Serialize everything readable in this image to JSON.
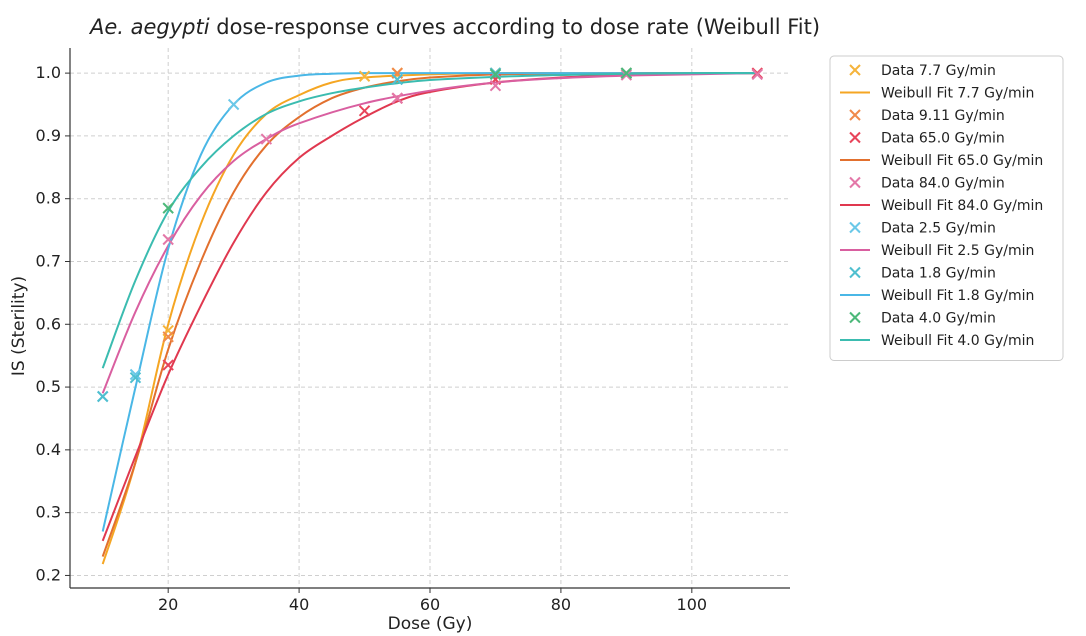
{
  "chart_data": {
    "type": "line",
    "title_species": "Ae. aegypti",
    "title_rest": " dose-response curves according to dose rate (Weibull Fit)",
    "xlabel": "Dose (Gy)",
    "ylabel": "IS (Sterility)",
    "xlim": [
      5,
      115
    ],
    "ylim": [
      0.18,
      1.04
    ],
    "xticks": [
      20,
      40,
      60,
      80,
      100
    ],
    "yticks": [
      0.2,
      0.3,
      0.4,
      0.5,
      0.6,
      0.7,
      0.8,
      0.9,
      1.0
    ],
    "ytick_labels": [
      "0.2",
      "0.3",
      "0.4",
      "0.5",
      "0.6",
      "0.7",
      "0.8",
      "0.9",
      "1.0"
    ],
    "grid": true,
    "legend_position": "outside-right",
    "scatter_series": [
      {
        "name": "Data 7.7 Gy/min",
        "color": "#f5b43c",
        "points": [
          [
            20,
            0.59
          ],
          [
            50,
            0.995
          ],
          [
            55,
            1.0
          ],
          [
            70,
            1.0
          ],
          [
            90,
            1.0
          ]
        ]
      },
      {
        "name": "Data 9.11 Gy/min",
        "color": "#f08a4b",
        "points": [
          [
            20,
            0.58
          ],
          [
            55,
            1.0
          ],
          [
            70,
            1.0
          ],
          [
            90,
            1.0
          ]
        ]
      },
      {
        "name": "Data 65.0 Gy/min",
        "color": "#e8445a",
        "points": [
          [
            20,
            0.535
          ],
          [
            50,
            0.94
          ],
          [
            55,
            0.96
          ],
          [
            70,
            0.99
          ],
          [
            110,
            1.0
          ]
        ]
      },
      {
        "name": "Data 84.0 Gy/min",
        "color": "#e377a8",
        "points": [
          [
            20,
            0.735
          ],
          [
            35,
            0.895
          ],
          [
            55,
            0.96
          ],
          [
            70,
            0.98
          ],
          [
            90,
            0.997
          ],
          [
            110,
            0.998
          ]
        ]
      },
      {
        "name": "Data 2.5 Gy/min",
        "color": "#6ac8e8",
        "points": [
          [
            10,
            0.485
          ],
          [
            15,
            0.52
          ],
          [
            30,
            0.95
          ],
          [
            55,
            0.99
          ],
          [
            70,
            1.0
          ]
        ]
      },
      {
        "name": "Data 1.8 Gy/min",
        "color": "#4fbfcf",
        "points": [
          [
            10,
            0.485
          ],
          [
            15,
            0.515
          ],
          [
            55,
            0.99
          ],
          [
            70,
            1.0
          ],
          [
            90,
            1.0
          ]
        ]
      },
      {
        "name": "Data 4.0 Gy/min",
        "color": "#4cb87a",
        "points": [
          [
            20,
            0.785
          ],
          [
            70,
            0.998
          ],
          [
            90,
            1.0
          ]
        ]
      }
    ],
    "fit_series": [
      {
        "name": "Weibull Fit 7.7 Gy/min",
        "color": "#f5a623",
        "points": [
          [
            10,
            0.218
          ],
          [
            15,
            0.38
          ],
          [
            20,
            0.6
          ],
          [
            25,
            0.76
          ],
          [
            30,
            0.87
          ],
          [
            35,
            0.935
          ],
          [
            40,
            0.965
          ],
          [
            45,
            0.985
          ],
          [
            50,
            0.993
          ],
          [
            60,
            0.998
          ],
          [
            70,
            1.0
          ],
          [
            80,
            1.0
          ],
          [
            90,
            1.0
          ],
          [
            100,
            1.0
          ],
          [
            110,
            1.0
          ]
        ]
      },
      {
        "name": "Weibull Fit 65.0 Gy/min",
        "color": "#e2702e",
        "points": [
          [
            10,
            0.23
          ],
          [
            15,
            0.38
          ],
          [
            20,
            0.56
          ],
          [
            25,
            0.7
          ],
          [
            30,
            0.81
          ],
          [
            35,
            0.885
          ],
          [
            40,
            0.93
          ],
          [
            45,
            0.96
          ],
          [
            50,
            0.977
          ],
          [
            55,
            0.987
          ],
          [
            60,
            0.993
          ],
          [
            70,
            0.998
          ],
          [
            80,
            0.999
          ],
          [
            90,
            1.0
          ],
          [
            100,
            1.0
          ],
          [
            110,
            1.0
          ]
        ]
      },
      {
        "name": "Weibull Fit 84.0 Gy/min",
        "color": "#e0384f",
        "points": [
          [
            10,
            0.255
          ],
          [
            15,
            0.39
          ],
          [
            20,
            0.52
          ],
          [
            25,
            0.63
          ],
          [
            30,
            0.73
          ],
          [
            35,
            0.81
          ],
          [
            40,
            0.865
          ],
          [
            45,
            0.9
          ],
          [
            50,
            0.93
          ],
          [
            55,
            0.955
          ],
          [
            60,
            0.97
          ],
          [
            70,
            0.985
          ],
          [
            80,
            0.993
          ],
          [
            90,
            0.997
          ],
          [
            100,
            0.999
          ],
          [
            110,
            1.0
          ]
        ]
      },
      {
        "name": "Weibull Fit 2.5 Gy/min",
        "color": "#d95fa0",
        "points": [
          [
            10,
            0.49
          ],
          [
            15,
            0.62
          ],
          [
            20,
            0.725
          ],
          [
            25,
            0.805
          ],
          [
            30,
            0.86
          ],
          [
            35,
            0.895
          ],
          [
            40,
            0.92
          ],
          [
            50,
            0.952
          ],
          [
            60,
            0.972
          ],
          [
            70,
            0.985
          ],
          [
            80,
            0.992
          ],
          [
            90,
            0.996
          ],
          [
            100,
            0.998
          ],
          [
            110,
            1.0
          ]
        ]
      },
      {
        "name": "Weibull Fit 1.8 Gy/min",
        "color": "#4ab7e6",
        "points": [
          [
            10,
            0.27
          ],
          [
            15,
            0.5
          ],
          [
            20,
            0.72
          ],
          [
            25,
            0.87
          ],
          [
            30,
            0.95
          ],
          [
            35,
            0.985
          ],
          [
            40,
            0.996
          ],
          [
            45,
            0.999
          ],
          [
            50,
            1.0
          ],
          [
            60,
            1.0
          ],
          [
            70,
            1.0
          ],
          [
            80,
            1.0
          ],
          [
            90,
            1.0
          ],
          [
            100,
            1.0
          ],
          [
            110,
            1.0
          ]
        ]
      },
      {
        "name": "Weibull Fit 4.0 Gy/min",
        "color": "#3bbcb0",
        "points": [
          [
            10,
            0.53
          ],
          [
            15,
            0.67
          ],
          [
            20,
            0.78
          ],
          [
            25,
            0.85
          ],
          [
            30,
            0.9
          ],
          [
            35,
            0.935
          ],
          [
            40,
            0.955
          ],
          [
            45,
            0.968
          ],
          [
            50,
            0.977
          ],
          [
            55,
            0.984
          ],
          [
            60,
            0.989
          ],
          [
            70,
            0.994
          ],
          [
            80,
            0.997
          ],
          [
            90,
            0.999
          ],
          [
            100,
            1.0
          ],
          [
            110,
            1.0
          ]
        ]
      }
    ],
    "legend": [
      {
        "label": "Data 7.7 Gy/min",
        "kind": "marker",
        "color": "#f5b43c"
      },
      {
        "label": "Weibull Fit 7.7 Gy/min",
        "kind": "line",
        "color": "#f5a623"
      },
      {
        "label": "Data 9.11 Gy/min",
        "kind": "marker",
        "color": "#f08a4b"
      },
      {
        "label": "Data 65.0 Gy/min",
        "kind": "marker",
        "color": "#e8445a"
      },
      {
        "label": "Weibull Fit 65.0 Gy/min",
        "kind": "line",
        "color": "#e2702e"
      },
      {
        "label": "Data 84.0 Gy/min",
        "kind": "marker",
        "color": "#e377a8"
      },
      {
        "label": "Weibull Fit 84.0 Gy/min",
        "kind": "line",
        "color": "#e0384f"
      },
      {
        "label": "Data 2.5 Gy/min",
        "kind": "marker",
        "color": "#6ac8e8"
      },
      {
        "label": "Weibull Fit 2.5 Gy/min",
        "kind": "line",
        "color": "#d95fa0"
      },
      {
        "label": "Data 1.8 Gy/min",
        "kind": "marker",
        "color": "#4fbfcf"
      },
      {
        "label": "Weibull Fit 1.8 Gy/min",
        "kind": "line",
        "color": "#4ab7e6"
      },
      {
        "label": "Data 4.0 Gy/min",
        "kind": "marker",
        "color": "#4cb87a"
      },
      {
        "label": "Weibull Fit 4.0 Gy/min",
        "kind": "line",
        "color": "#3bbcb0"
      }
    ]
  }
}
